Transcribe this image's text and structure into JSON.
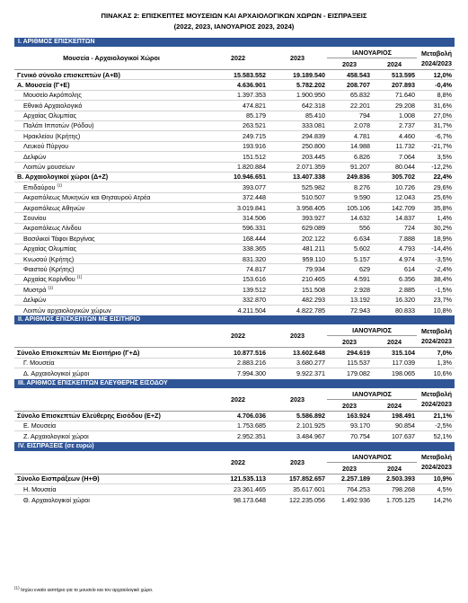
{
  "title": "ΠΙΝΑΚΑΣ 2: ΕΠΙΣΚΕΠΤΕΣ ΜΟΥΣΕΙΩΝ ΚΑΙ ΑΡΧΑΙΟΛΟΓΙΚΩΝ ΧΩΡΩΝ - ΕΙΣΠΡΑΞΕΙΣ",
  "subtitle": "(2022, 2023, ΙΑΝΟΥΑΡΙΟΣ 2023, 2024)",
  "headers": {
    "name": "Μουσεία - Αρχαιολογικοί Χώροι",
    "y2022": "2022",
    "y2023": "2023",
    "jan": "ΙΑΝΟΥΑΡΙΟΣ",
    "jan2023": "2023",
    "jan2024": "2024",
    "change1": "Μεταβολή",
    "change2": "2024/2023"
  },
  "section1": {
    "title": "Ι. ΑΡΙΘΜΟΣ ΕΠΙΣΚΕΠΤΩΝ",
    "rows": [
      {
        "name": "Γενικό σύνολο επισκεπτών (Α+Β)",
        "v2022": "15.583.552",
        "v2023": "19.189.540",
        "j2023": "458.543",
        "j2024": "513.595",
        "chg": "12,0%",
        "bold": true
      },
      {
        "name": "Α. Μουσεία (Γ+Ε)",
        "v2022": "4.636.901",
        "v2023": "5.782.202",
        "j2023": "208.707",
        "j2024": "207.893",
        "chg": "-0,4%",
        "bold": true
      },
      {
        "name": "Μουσείο Ακρόπολης",
        "v2022": "1.397.353",
        "v2023": "1.900.950",
        "j2023": "65.832",
        "j2024": "71.640",
        "chg": "8,8%"
      },
      {
        "name": "Εθνικό Αρχαιολογικό",
        "v2022": "474.821",
        "v2023": "642.318",
        "j2023": "22.201",
        "j2024": "29.208",
        "chg": "31,6%"
      },
      {
        "name": "Αρχαίας Ολυμπίας",
        "v2022": "85.179",
        "v2023": "85.410",
        "j2023": "794",
        "j2024": "1.008",
        "chg": "27,0%"
      },
      {
        "name": "Παλάτι Ιπποτών (Ρόδου)",
        "v2022": "263.521",
        "v2023": "333.081",
        "j2023": "2.078",
        "j2024": "2.737",
        "chg": "31,7%"
      },
      {
        "name": "Ηρακλείου (Κρήτης)",
        "v2022": "249.715",
        "v2023": "294.839",
        "j2023": "4.781",
        "j2024": "4.460",
        "chg": "-6,7%"
      },
      {
        "name": "Λευκού Πύργου",
        "v2022": "193.916",
        "v2023": "250.800",
        "j2023": "14.988",
        "j2024": "11.732",
        "chg": "-21,7%"
      },
      {
        "name": "Δελφών",
        "v2022": "151.512",
        "v2023": "203.445",
        "j2023": "6.826",
        "j2024": "7.064",
        "chg": "3,5%"
      },
      {
        "name": "Λοιπών μουσείων",
        "v2022": "1.820.884",
        "v2023": "2.071.359",
        "j2023": "91.207",
        "j2024": "80.044",
        "chg": "-12,2%"
      },
      {
        "name": "Β. Αρχαιολογικοί χώροι (Δ+Ζ)",
        "v2022": "10.946.651",
        "v2023": "13.407.338",
        "j2023": "249.836",
        "j2024": "305.702",
        "chg": "22,4%",
        "bold": true
      },
      {
        "name": "Επιδαύρου",
        "sup": "(1)",
        "v2022": "393.077",
        "v2023": "525.982",
        "j2023": "8.276",
        "j2024": "10.726",
        "chg": "29,6%"
      },
      {
        "name": "Ακροπόλεως Μυκηνών και Θησαυρού Ατρέα",
        "v2022": "372.448",
        "v2023": "510.507",
        "j2023": "9.590",
        "j2024": "12.043",
        "chg": "25,6%"
      },
      {
        "name": "Ακροπόλεως Αθηνών",
        "v2022": "3.019.841",
        "v2023": "3.958.405",
        "j2023": "105.106",
        "j2024": "142.709",
        "chg": "35,8%"
      },
      {
        "name": "Σουνίου",
        "v2022": "314.506",
        "v2023": "393.927",
        "j2023": "14.632",
        "j2024": "14.837",
        "chg": "1,4%"
      },
      {
        "name": "Ακροπόλεως Λίνδου",
        "v2022": "596.331",
        "v2023": "629.089",
        "j2023": "556",
        "j2024": "724",
        "chg": "30,2%"
      },
      {
        "name": "Βασιλικοί Τάφοι Βεργίνας",
        "v2022": "168.444",
        "v2023": "202.122",
        "j2023": "6.634",
        "j2024": "7.888",
        "chg": "18,9%"
      },
      {
        "name": "Αρχαίας Ολυμπίας",
        "v2022": "338.365",
        "v2023": "481.211",
        "j2023": "5.602",
        "j2024": "4.793",
        "chg": "-14,4%"
      },
      {
        "name": "Κνωσού (Κρήτης)",
        "v2022": "831.320",
        "v2023": "959.110",
        "j2023": "5.157",
        "j2024": "4.974",
        "chg": "-3,5%"
      },
      {
        "name": "Φαιστού (Κρήτης)",
        "v2022": "74.817",
        "v2023": "79.934",
        "j2023": "629",
        "j2024": "614",
        "chg": "-2,4%"
      },
      {
        "name": "Αρχαίας Κορίνθου",
        "sup": "(1)",
        "v2022": "153.616",
        "v2023": "210.465",
        "j2023": "4.591",
        "j2024": "6.356",
        "chg": "38,4%"
      },
      {
        "name": "Μυστρά",
        "sup": "(1)",
        "v2022": "139.512",
        "v2023": "151.508",
        "j2023": "2.928",
        "j2024": "2.885",
        "chg": "-1,5%"
      },
      {
        "name": "Δελφών",
        "v2022": "332.870",
        "v2023": "482.293",
        "j2023": "13.192",
        "j2024": "16.320",
        "chg": "23,7%"
      },
      {
        "name": "Λοιπών αρχαιολογικών χώρων",
        "v2022": "4.211.504",
        "v2023": "4.822.785",
        "j2023": "72.943",
        "j2024": "80.833",
        "chg": "10,8%"
      }
    ]
  },
  "section2": {
    "title": "ΙΙ. ΑΡΙΘΜΟΣ ΕΠΙΣΚΕΠΤΩΝ ΜΕ ΕΙΣΙΤΗΡΙΟ",
    "rows": [
      {
        "name": "Σύνολο Επισκεπτών Με Εισιτήριο (Γ+Δ)",
        "v2022": "10.877.516",
        "v2023": "13.602.648",
        "j2023": "294.619",
        "j2024": "315.104",
        "chg": "7,0%",
        "bold": true
      },
      {
        "name": "Γ. Μουσεία",
        "v2022": "2.883.216",
        "v2023": "3.680.277",
        "j2023": "115.537",
        "j2024": "117.039",
        "chg": "1,3%"
      },
      {
        "name": "Δ. Αρχαιολογικοί χώροι",
        "v2022": "7.994.300",
        "v2023": "9.922.371",
        "j2023": "179.082",
        "j2024": "198.065",
        "chg": "10,6%"
      }
    ]
  },
  "section3": {
    "title": "ΙΙΙ. ΑΡΙΘΜΟΣ ΕΠΙΣΚΕΠΤΩΝ ΕΛΕΥΘΕΡΗΣ ΕΙΣΟΔΟΥ",
    "rows": [
      {
        "name": "Σύνολο Επισκεπτών Ελεύθερης Εισόδου (Ε+Ζ)",
        "v2022": "4.706.036",
        "v2023": "5.586.892",
        "j2023": "163.924",
        "j2024": "198.491",
        "chg": "21,1%",
        "bold": true
      },
      {
        "name": "Ε. Μουσεία",
        "v2022": "1.753.685",
        "v2023": "2.101.925",
        "j2023": "93.170",
        "j2024": "90.854",
        "chg": "-2,5%"
      },
      {
        "name": "Ζ. Αρχαιολογικοί χώροι",
        "v2022": "2.952.351",
        "v2023": "3.484.967",
        "j2023": "70.754",
        "j2024": "107.637",
        "chg": "52,1%"
      }
    ]
  },
  "section4": {
    "title": "IV. ΕΙΣΠΡΑΞΕΙΣ (σε ευρώ)",
    "rows": [
      {
        "name": "Σύνολο Εισπράξεων (Η+Θ)",
        "v2022": "121.535.113",
        "v2023": "157.852.657",
        "j2023": "2.257.189",
        "j2024": "2.503.393",
        "chg": "10,9%",
        "bold": true
      },
      {
        "name": "Η. Μουσεία",
        "v2022": "23.361.465",
        "v2023": "35.617.601",
        "j2023": "764.253",
        "j2024": "798.268",
        "chg": "4,5%"
      },
      {
        "name": "Θ. Αρχαιολογικοί χώροι",
        "v2022": "98.173.648",
        "v2023": "122.235.056",
        "j2023": "1.492.936",
        "j2024": "1.705.125",
        "chg": "14,2%"
      }
    ]
  },
  "footnote_mark": "(1)",
  "footnote": " Ισχύει ενιαίο εισιτήριο για το μουσείο και τον αρχαιολογικό χώρο."
}
